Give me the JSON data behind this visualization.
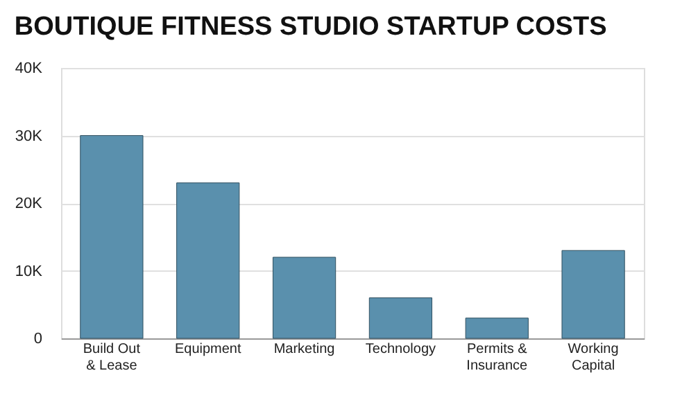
{
  "chart_data": {
    "type": "bar",
    "title": "BOUTIQUE FITNESS STUDIO STARTUP COSTS",
    "categories": [
      "Build Out & Lease",
      "Equipment",
      "Marketing",
      "Technology",
      "Permits & Insurance",
      "Working Capital"
    ],
    "values": [
      30000,
      23000,
      12000,
      6000,
      3000,
      13000
    ],
    "color": "#5a90ad",
    "ylim": [
      0,
      40000
    ],
    "yticks": [
      {
        "value": 0,
        "label": "0"
      },
      {
        "value": 10000,
        "label": "10K"
      },
      {
        "value": 20000,
        "label": "20K"
      },
      {
        "value": 30000,
        "label": "30K"
      },
      {
        "value": 40000,
        "label": "40K"
      }
    ],
    "grid": "y"
  }
}
